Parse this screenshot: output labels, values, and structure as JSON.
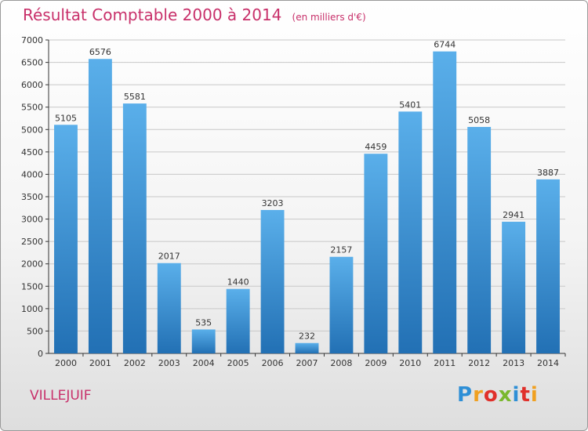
{
  "title": "Résultat Comptable 2000 à 2014",
  "unit_note": "(en milliers d'€)",
  "place": "VILLEJUIF",
  "logo": {
    "letters": [
      "P",
      "r",
      "o",
      "x",
      "i",
      "t",
      "i"
    ],
    "colors": [
      "#2e8fd6",
      "#f0a020",
      "#e0302a",
      "#7ab82e",
      "#2e8fd6",
      "#e0302a",
      "#f0a020"
    ]
  },
  "colors": {
    "title": "#c8306a",
    "bar_light": "#5aafea",
    "bar_dark": "#2270b4",
    "axis": "#333333",
    "grid": "#c8c8c8"
  },
  "chart_data": {
    "type": "bar",
    "title": "Résultat Comptable 2000 à 2014",
    "subtitle": "(en milliers d'€)",
    "xlabel": "",
    "ylabel": "",
    "categories": [
      "2000",
      "2001",
      "2002",
      "2003",
      "2004",
      "2005",
      "2006",
      "2007",
      "2008",
      "2009",
      "2010",
      "2011",
      "2012",
      "2013",
      "2014"
    ],
    "values": [
      5105,
      6576,
      5581,
      2017,
      535,
      1440,
      3203,
      232,
      2157,
      4459,
      5401,
      6744,
      5058,
      2941,
      3887
    ],
    "ylim": [
      0,
      7000
    ],
    "yticks": [
      0,
      500,
      1000,
      1500,
      2000,
      2500,
      3000,
      3500,
      4000,
      4500,
      5000,
      5500,
      6000,
      6500,
      7000
    ],
    "grid": true,
    "legend": "none"
  }
}
